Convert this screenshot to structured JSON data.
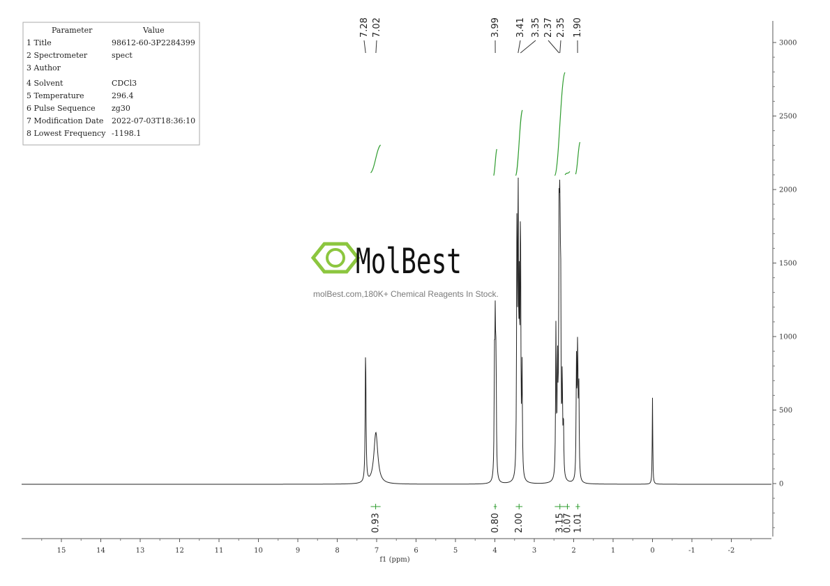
{
  "parameters": {
    "header": [
      "Parameter",
      "Value"
    ],
    "rows": [
      [
        "1 Title",
        "98612-60-3P2284399"
      ],
      [
        "2 Spectrometer",
        "spect"
      ],
      [
        "3 Author",
        ""
      ],
      [
        "4 Solvent",
        "CDCl3"
      ],
      [
        "5 Temperature",
        "296.4"
      ],
      [
        "6 Pulse Sequence",
        "zg30"
      ],
      [
        "7 Modification Date",
        "2022-07-03T18:36:10"
      ],
      [
        "8 Lowest Frequency",
        "-1198.1"
      ]
    ]
  },
  "watermark": {
    "name": "MolBest",
    "tagline": "molBest.com,180K+ Chemical Reagents In Stock."
  },
  "colors": {
    "spectrum": "#222222",
    "integral": "#2e9c2e",
    "logo": "#8cc63f",
    "axis": "#555555"
  },
  "chart_data": {
    "type": "line",
    "xlabel": "f1 (ppm)",
    "x_ticks": [
      15,
      14,
      13,
      12,
      11,
      10,
      9,
      8,
      7,
      6,
      5,
      4,
      3,
      2,
      1,
      0,
      -1,
      -2
    ],
    "xlim": [
      15.9,
      -3.0
    ],
    "x_reversed": true,
    "y_ticks": [
      0,
      500,
      1000,
      1500,
      2000,
      2500,
      3000
    ],
    "ylim": [
      -360,
      3100
    ],
    "peak_labels": [
      "7.28",
      "7.02",
      "3.99",
      "3.41",
      "3.35",
      "2.37",
      "2.35",
      "1.90"
    ],
    "peaks": [
      {
        "ppm": 7.28,
        "height": 955
      },
      {
        "ppm": 7.02,
        "height": 370
      },
      {
        "ppm": 3.99,
        "height": 1040
      },
      {
        "ppm": 3.41,
        "height": 2000
      },
      {
        "ppm": 3.35,
        "height": 1870
      },
      {
        "ppm": 2.37,
        "height": 1660
      },
      {
        "ppm": 2.35,
        "height": 1510
      },
      {
        "ppm": 1.9,
        "height": 945
      },
      {
        "ppm": 0.0,
        "height": 620
      }
    ],
    "integrals": [
      {
        "from": 7.15,
        "to": 6.9,
        "value": "0.93"
      },
      {
        "from": 4.03,
        "to": 3.95,
        "value": "0.80"
      },
      {
        "from": 3.47,
        "to": 3.3,
        "value": "2.00"
      },
      {
        "from": 2.48,
        "to": 2.22,
        "value": "3.15"
      },
      {
        "from": 2.22,
        "to": 2.1,
        "value": "0.07"
      },
      {
        "from": 1.95,
        "to": 1.84,
        "value": "1.01"
      }
    ]
  }
}
